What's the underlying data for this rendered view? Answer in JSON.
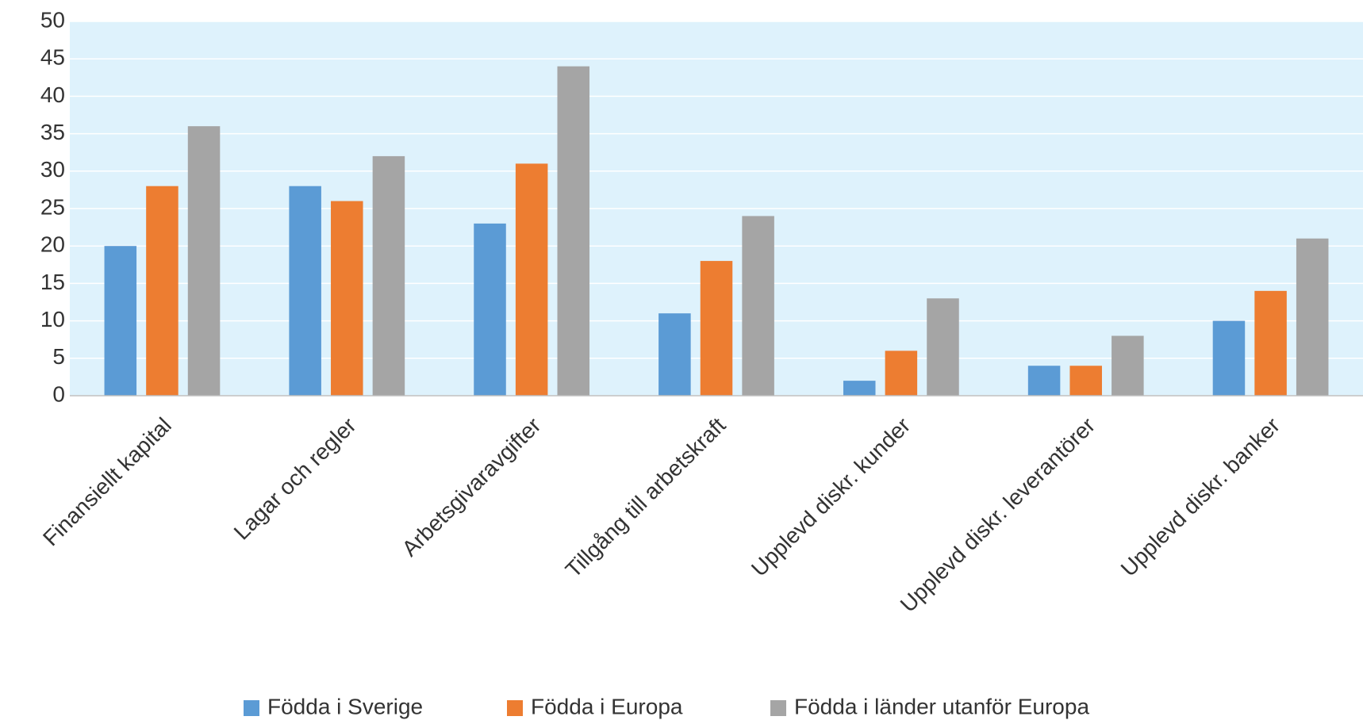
{
  "chart_data": {
    "type": "bar",
    "categories": [
      "Finansiellt kapital",
      "Lagar och regler",
      "Arbetsgivaravgifter",
      "Tillgång till arbetskraft",
      "Upplevd diskr. kunder",
      "Upplevd diskr. leverantörer",
      "Upplevd diskr. banker"
    ],
    "series": [
      {
        "name": "Födda i Sverige",
        "color": "#5b9bd5",
        "values": [
          20,
          28,
          23,
          11,
          2,
          4,
          10
        ]
      },
      {
        "name": "Födda i Europa",
        "color": "#ed7d31",
        "values": [
          28,
          26,
          31,
          18,
          6,
          4,
          14
        ]
      },
      {
        "name": "Födda i länder utanför Europa",
        "color": "#a5a5a5",
        "values": [
          36,
          32,
          44,
          24,
          13,
          8,
          21
        ]
      }
    ],
    "ylim": [
      0,
      50
    ],
    "yticks": [
      0,
      5,
      10,
      15,
      20,
      25,
      30,
      35,
      40,
      45,
      50
    ],
    "grid": true,
    "legend": "bottom"
  }
}
